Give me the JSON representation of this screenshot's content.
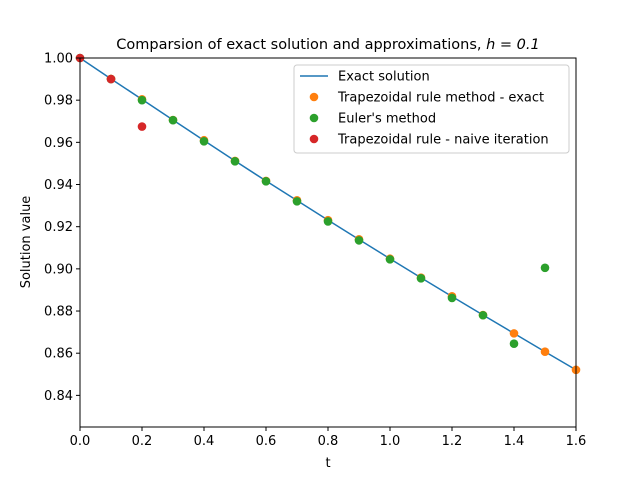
{
  "chart_data": {
    "type": "line",
    "title": "Comparsion of exact solution and approximations, h = 0.1",
    "title_prefix": "Comparsion of exact solution and approximations, ",
    "title_math": "h = 0.1",
    "xlabel": "t",
    "ylabel": "Solution value",
    "xlim": [
      0,
      1.6
    ],
    "ylim": [
      0.825,
      1.0
    ],
    "xticks": [
      "0.0",
      "0.2",
      "0.4",
      "0.6",
      "0.8",
      "1.0",
      "1.2",
      "1.4",
      "1.6"
    ],
    "yticks": [
      "0.84",
      "0.86",
      "0.88",
      "0.90",
      "0.92",
      "0.94",
      "0.96",
      "0.98",
      "1.00"
    ],
    "grid": false,
    "legend_position": "top-right",
    "series": [
      {
        "name": "Exact solution",
        "kind": "line",
        "color": "#1f77b4",
        "x": [
          0,
          0.1,
          0.2,
          0.3,
          0.4,
          0.5,
          0.6,
          0.7,
          0.8,
          0.9,
          1.0,
          1.1,
          1.2,
          1.3,
          1.4,
          1.5,
          1.6
        ],
        "y": [
          1.0,
          0.9901,
          0.9804,
          0.9706,
          0.9609,
          0.9512,
          0.9417,
          0.9324,
          0.9231,
          0.9139,
          0.9048,
          0.8958,
          0.8869,
          0.8781,
          0.8694,
          0.8607,
          0.8521
        ]
      },
      {
        "name": "Trapezoidal rule method - exact",
        "kind": "scatter",
        "color": "#ff7f0e",
        "x": [
          0.1,
          0.2,
          0.3,
          0.4,
          0.5,
          0.6,
          0.7,
          0.8,
          0.9,
          1.0,
          1.1,
          1.2,
          1.3,
          1.4,
          1.5,
          1.6
        ],
        "y": [
          0.9901,
          0.9804,
          0.9706,
          0.961,
          0.9512,
          0.9417,
          0.9325,
          0.9231,
          0.914,
          0.9048,
          0.8958,
          0.887,
          0.8781,
          0.8694,
          0.8607,
          0.8521
        ]
      },
      {
        "name": "Euler's method",
        "kind": "scatter",
        "color": "#2ca02c",
        "x": [
          0,
          0.1,
          0.2,
          0.3,
          0.4,
          0.5,
          0.6,
          0.7,
          0.8,
          0.9,
          1.0,
          1.1,
          1.2,
          1.3,
          1.4,
          1.5
        ],
        "y": [
          1.0,
          0.99,
          0.98,
          0.9705,
          0.9605,
          0.951,
          0.9415,
          0.932,
          0.9225,
          0.9135,
          0.9045,
          0.8955,
          0.8862,
          0.878,
          0.8645,
          0.9005
        ]
      },
      {
        "name": "Trapezoidal rule - naive iteration",
        "kind": "scatter",
        "color": "#d62728",
        "x": [
          0,
          0.1,
          0.2
        ],
        "y": [
          1.0,
          0.99,
          0.9675
        ]
      }
    ]
  }
}
